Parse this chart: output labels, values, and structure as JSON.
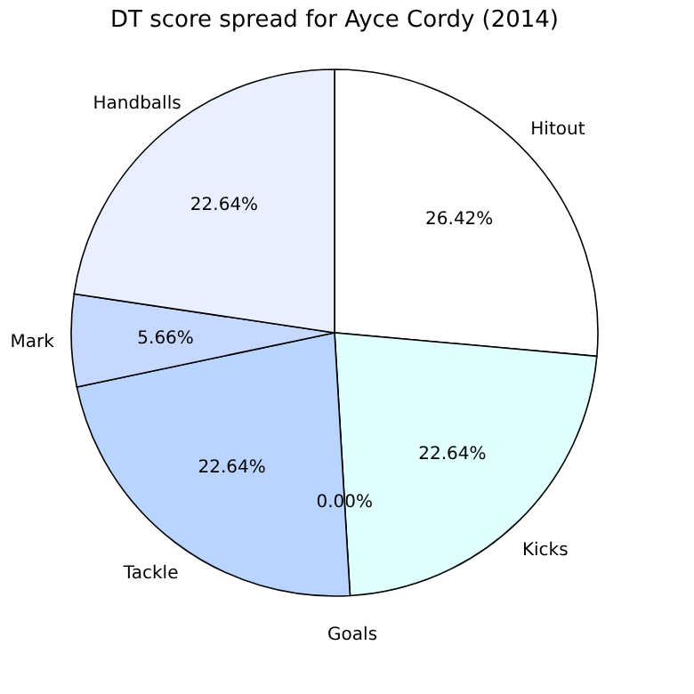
{
  "chart_data": {
    "type": "pie",
    "title": "DT score spread for Ayce Cordy (2014)",
    "categories": [
      "Hitout",
      "Kicks",
      "Goals",
      "Tackle",
      "Mark",
      "Handballs"
    ],
    "values": [
      26.42,
      22.64,
      0,
      22.64,
      5.66,
      22.64
    ],
    "value_labels": [
      "26.42%",
      "22.64%",
      "0.00%",
      "22.64%",
      "5.66%",
      "22.64%"
    ],
    "colors": [
      "#ffffff",
      "#e0ffff",
      "#8fb0f0",
      "#b8d4ff",
      "#c6d8ff",
      "#e8f0ff"
    ],
    "legend": false
  }
}
